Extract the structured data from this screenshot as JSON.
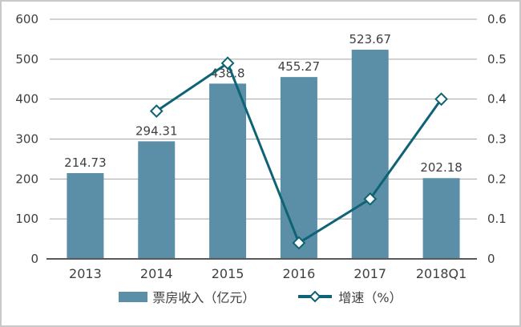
{
  "chart_data": {
    "type": "bar",
    "subtype": "bar-line-combo",
    "title": "",
    "categories": [
      "2013",
      "2014",
      "2015",
      "2016",
      "2017",
      "2018Q1"
    ],
    "series": [
      {
        "name": "票房收入（亿元）",
        "type": "bar",
        "axis": "left",
        "values": [
          214.73,
          294.31,
          438.8,
          455.27,
          523.67,
          202.18
        ],
        "labels": [
          "214.73",
          "294.31",
          "438.8",
          "455.27",
          "523.67",
          "202.18"
        ],
        "color": "#5B8FA8"
      },
      {
        "name": "增速（%）",
        "type": "line",
        "axis": "right",
        "values": [
          null,
          0.37,
          0.49,
          0.04,
          0.15,
          0.4
        ],
        "color": "#0E6374",
        "marker": "diamond",
        "marker_fill": "#FFFFFF"
      }
    ],
    "left_axis": {
      "min": 0,
      "max": 600,
      "step": 100,
      "ticks": [
        "600",
        "500",
        "400",
        "300",
        "200",
        "100",
        "0"
      ]
    },
    "right_axis": {
      "min": 0,
      "max": 0.6,
      "step": 0.1,
      "ticks": [
        "0.6",
        "0.5",
        "0.4",
        "0.3",
        "0.2",
        "0.1",
        "0"
      ]
    },
    "grid": true,
    "legend_position": "bottom",
    "colors": {
      "gridline": "#A6A6A6",
      "baseline": "#595959",
      "text": "#404040",
      "background": "#FFFFFF",
      "frame_border": "#C9C9C9"
    }
  }
}
